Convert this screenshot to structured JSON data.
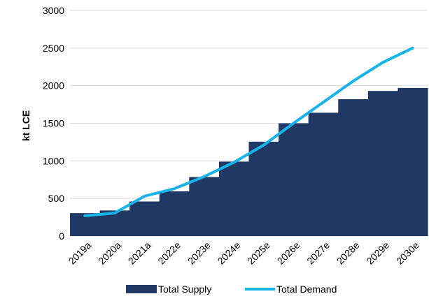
{
  "chart_data": {
    "type": "bar",
    "categories": [
      "2019a",
      "2020a",
      "2021a",
      "2022e",
      "2023e",
      "2024e",
      "2025e",
      "2026e",
      "2027e",
      "2028e",
      "2029e",
      "2030e"
    ],
    "series": [
      {
        "name": "Total Supply",
        "kind": "step-area",
        "color": "#1F3864",
        "values": [
          305,
          340,
          460,
          595,
          785,
          990,
          1255,
          1500,
          1640,
          1820,
          1930,
          1970
        ]
      },
      {
        "name": "Total Demand",
        "kind": "line",
        "color": "#1AB3E8",
        "values": [
          270,
          305,
          530,
          630,
          790,
          980,
          1210,
          1500,
          1780,
          2060,
          2310,
          2500
        ]
      }
    ],
    "ylabel": "kt  LCE",
    "ylim": [
      0,
      3000
    ],
    "yticks": [
      "0",
      "500",
      "1000",
      "1500",
      "2000",
      "2500",
      "3000"
    ],
    "grid": "horizontal",
    "legend": "bottom"
  }
}
